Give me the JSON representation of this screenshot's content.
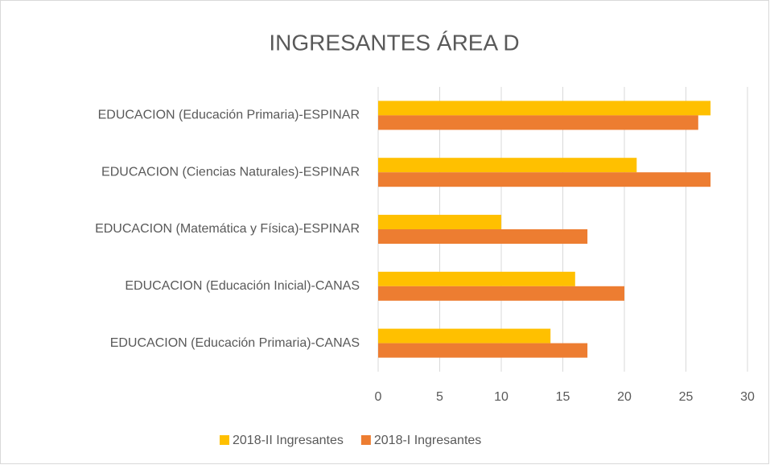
{
  "chart_data": {
    "type": "hbar",
    "title": "INGRESANTES ÁREA D",
    "categories": [
      "EDUCACION (Educación Primaria)-ESPINAR",
      "EDUCACION (Ciencias Naturales)-ESPINAR",
      "EDUCACION (Matemática y Física)-ESPINAR",
      "EDUCACION (Educación Inicial)-CANAS",
      "EDUCACION (Educación Primaria)-CANAS"
    ],
    "series": [
      {
        "name": "2018-II Ingresantes",
        "color": "#ffc000",
        "values": [
          27,
          21,
          10,
          16,
          14
        ]
      },
      {
        "name": "2018-I Ingresantes",
        "color": "#ed7d31",
        "values": [
          26,
          27,
          17,
          20,
          17
        ]
      }
    ],
    "xlim": [
      0,
      30
    ],
    "xticks": [
      0,
      5,
      10,
      15,
      20,
      25,
      30
    ],
    "grid": true,
    "legend": "bottom"
  }
}
